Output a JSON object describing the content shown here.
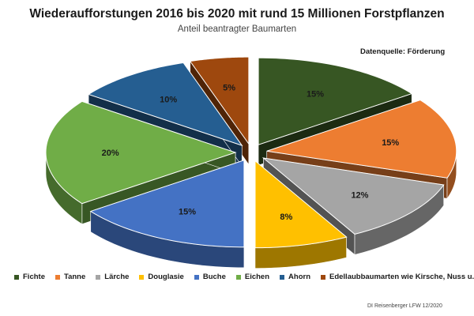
{
  "chart_data": {
    "type": "pie",
    "title": "Wiederaufforstungen 2016 bis 2020 mit rund 15 Millionen Forstpflanzen",
    "subtitle": "Anteil beantragter Baumarten",
    "source_note": "Datenquelle: Förderung",
    "credit": "DI Reisenberger LFW 12/2020",
    "exploded_3d": true,
    "legend_position": "bottom",
    "slices": [
      {
        "label": "Fichte",
        "value": 15,
        "value_label": "15%",
        "color": "#375623"
      },
      {
        "label": "Tanne",
        "value": 15,
        "value_label": "15%",
        "color": "#ED7D31"
      },
      {
        "label": "Lärche",
        "value": 12,
        "value_label": "12%",
        "color": "#A5A5A5"
      },
      {
        "label": "Douglasie",
        "value": 8,
        "value_label": "8%",
        "color": "#FFC000"
      },
      {
        "label": "Buche",
        "value": 15,
        "value_label": "15%",
        "color": "#4472C4"
      },
      {
        "label": "Eichen",
        "value": 20,
        "value_label": "20%",
        "color": "#70AD47"
      },
      {
        "label": "Ahorn",
        "value": 10,
        "value_label": "10%",
        "color": "#255E91"
      },
      {
        "label": "Edellaubbaumarten wie Kirsche, Nuss u.a.",
        "value": 5,
        "value_label": "5%",
        "color": "#9E480E"
      }
    ]
  }
}
